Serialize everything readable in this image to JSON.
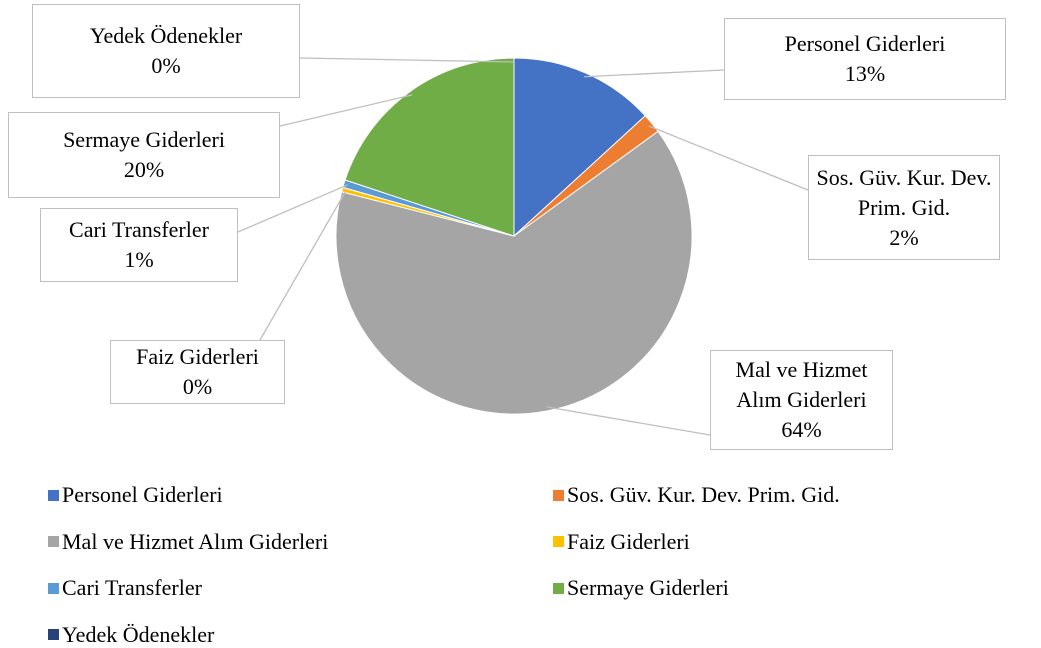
{
  "chart_data": {
    "type": "pie",
    "categories": [
      "Personel Giderleri",
      "Sos. Güv. Kur. Dev. Prim. Gid.",
      "Mal ve Hizmet Alım Giderleri",
      "Faiz Giderleri",
      "Cari Transferler",
      "Sermaye Giderleri",
      "Yedek Ödenekler"
    ],
    "values": [
      13.2,
      1.8,
      64.0,
      0.4,
      0.7,
      19.9,
      0
    ],
    "value_labels": [
      "13%",
      "2%",
      "64%",
      "0%",
      "1%",
      "20%",
      "0%"
    ],
    "colors": [
      "#4472c4",
      "#ed7d31",
      "#a5a5a5",
      "#ffc000",
      "#5b9bd5",
      "#70ad47",
      "#264478"
    ],
    "legend": "bottom"
  }
}
